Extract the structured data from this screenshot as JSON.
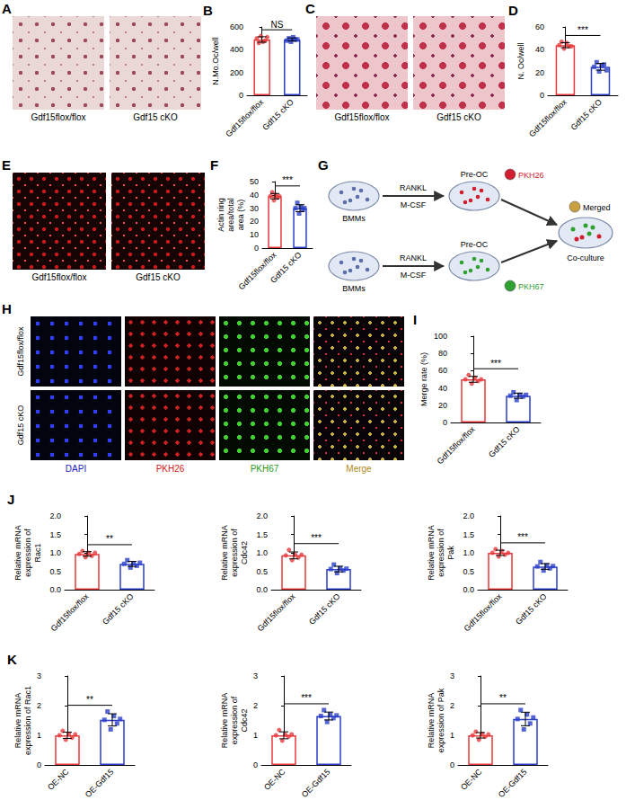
{
  "chart_data": [
    {
      "type": "bar",
      "panel": "B",
      "categories": [
        "Gdf15flox/flox",
        "Gdf15 cKO"
      ],
      "values": [
        490,
        490
      ],
      "errors": [
        24,
        14
      ],
      "points": [
        [
          500,
          460,
          520,
          470,
          480,
          510
        ],
        [
          480,
          500,
          470,
          510,
          490,
          490
        ]
      ],
      "colors": [
        "#e8393d",
        "#2b3fc8"
      ],
      "ylabel": "N.Mo.Oc/well",
      "ylim": [
        0,
        600
      ],
      "yticks": [
        0,
        200,
        400,
        600
      ],
      "annotation": "NS",
      "grid": false
    },
    {
      "type": "bar",
      "panel": "D",
      "categories": [
        "Gdf15flox/flox",
        "Gdf15 cKO"
      ],
      "values": [
        44,
        25
      ],
      "errors": [
        2.2,
        3.0
      ],
      "points": [
        [
          44,
          47,
          41,
          46,
          43,
          43
        ],
        [
          25,
          29,
          21,
          26,
          27,
          22
        ]
      ],
      "colors": [
        "#e8393d",
        "#2b3fc8"
      ],
      "ylabel": "N. Oc/well",
      "ylim": [
        0,
        60
      ],
      "yticks": [
        0,
        20,
        40,
        60
      ],
      "annotation": "***",
      "grid": false
    },
    {
      "type": "bar",
      "panel": "F",
      "categories": [
        "Gdf15flox/flox",
        "Gdf15 cKO"
      ],
      "values": [
        39,
        30
      ],
      "errors": [
        2.0,
        2.6
      ],
      "points": [
        [
          39,
          42,
          36,
          40,
          38,
          39
        ],
        [
          30,
          34,
          26,
          31,
          29,
          30
        ]
      ],
      "colors": [
        "#e8393d",
        "#2b3fc8"
      ],
      "ylabel": "Actin ring area/total area (%)",
      "ylim": [
        0,
        50
      ],
      "yticks": [
        0,
        10,
        20,
        30,
        40,
        50
      ],
      "annotation": "***",
      "grid": false
    },
    {
      "type": "bar",
      "panel": "I",
      "categories": [
        "Gdf15flox/flox",
        "Gdf15 cKO"
      ],
      "values": [
        50,
        31
      ],
      "errors": [
        3.4,
        3.0
      ],
      "points": [
        [
          50,
          55,
          45,
          52,
          48,
          50
        ],
        [
          31,
          35,
          26,
          32,
          30,
          32
        ]
      ],
      "colors": [
        "#e8393d",
        "#2b3fc8"
      ],
      "ylabel": "Merge rate (%)",
      "ylim": [
        0,
        100
      ],
      "yticks": [
        0,
        20,
        40,
        60,
        80,
        100
      ],
      "annotation": "***",
      "grid": false
    },
    {
      "type": "bar",
      "panel": "J",
      "categories": [
        "Gdf15flox/flox",
        "Gdf15 cKO"
      ],
      "values": [
        0.97,
        0.7
      ],
      "errors": [
        0.061,
        0.069
      ],
      "points": [
        [
          0.97,
          1.05,
          0.88,
          1.0,
          0.92,
          1.0
        ],
        [
          0.7,
          0.8,
          0.6,
          0.72,
          0.65,
          0.73
        ]
      ],
      "colors": [
        "#e8393d",
        "#2b3fc8"
      ],
      "ylabel": "Relative mRNA expression of Rac1",
      "ylim": [
        0,
        2
      ],
      "yticks": [
        {
          "value": 0,
          "label": "0.0"
        },
        0.5,
        {
          "value": 1,
          "label": "1.0"
        },
        1.5,
        {
          "value": 2,
          "label": "2.0"
        }
      ],
      "annotation": "**",
      "grid": false
    },
    {
      "type": "bar",
      "categories": [
        "Gdf15flox/flox",
        "Gdf15 cKO"
      ],
      "values": [
        0.93,
        0.56
      ],
      "errors": [
        0.094,
        0.076
      ],
      "points": [
        [
          0.93,
          1.08,
          0.8,
          0.95,
          0.87,
          0.95
        ],
        [
          0.56,
          0.68,
          0.45,
          0.58,
          0.52,
          0.57
        ]
      ],
      "colors": [
        "#e8393d",
        "#2b3fc8"
      ],
      "ylabel": "Relative mRNA expression of Cdc42",
      "ylim": [
        0,
        2
      ],
      "yticks": [
        {
          "value": 0,
          "label": "0.0"
        },
        0.5,
        {
          "value": 1,
          "label": "1.0"
        },
        1.5,
        {
          "value": 2,
          "label": "2.0"
        }
      ],
      "annotation": "***",
      "grid": false
    },
    {
      "type": "bar",
      "categories": [
        "Gdf15flox/flox",
        "Gdf15 cKO"
      ],
      "values": [
        1.0,
        0.63
      ],
      "errors": [
        0.071,
        0.077
      ],
      "points": [
        [
          1.0,
          1.1,
          0.9,
          1.05,
          0.95,
          1.0
        ],
        [
          0.63,
          0.75,
          0.52,
          0.66,
          0.58,
          0.64
        ]
      ],
      "colors": [
        "#e8393d",
        "#2b3fc8"
      ],
      "ylabel": "Relative mRNA expression of Pak",
      "ylim": [
        0,
        2
      ],
      "yticks": [
        {
          "value": 0,
          "label": "0.0"
        },
        0.5,
        {
          "value": 1,
          "label": "1.0"
        },
        1.5,
        {
          "value": 2,
          "label": "2.0"
        }
      ],
      "annotation": "***",
      "grid": false
    },
    {
      "type": "bar",
      "panel": "K",
      "categories": [
        "OE-NC",
        "OE-Gdf15"
      ],
      "values": [
        1.0,
        1.52
      ],
      "errors": [
        0.105,
        0.206
      ],
      "points": [
        [
          1.0,
          1.15,
          0.85,
          1.05,
          0.92,
          1.03
        ],
        [
          1.52,
          1.8,
          1.2,
          1.65,
          1.4,
          1.55
        ]
      ],
      "colors": [
        "#e8393d",
        "#2b3fc8"
      ],
      "ylabel": "Relative mRNA expression of Rac1",
      "ylim": [
        0,
        3
      ],
      "yticks": [
        0,
        1,
        2,
        3
      ],
      "annotation": "**",
      "grid": false
    },
    {
      "type": "bar",
      "categories": [
        "OE-NC",
        "OE-Gdf15"
      ],
      "values": [
        1.0,
        1.65
      ],
      "errors": [
        0.117,
        0.133
      ],
      "points": [
        [
          1.0,
          1.18,
          0.82,
          1.02,
          0.95,
          1.03
        ],
        [
          1.65,
          1.85,
          1.45,
          1.7,
          1.58,
          1.67
        ]
      ],
      "colors": [
        "#e8393d",
        "#2b3fc8"
      ],
      "ylabel": "Relative mRNA expression of Cdc42",
      "ylim": [
        0,
        3
      ],
      "yticks": [
        0,
        1,
        2,
        3
      ],
      "annotation": "***",
      "grid": false
    },
    {
      "type": "bar",
      "categories": [
        "OE-NC",
        "OE-Gdf15"
      ],
      "values": [
        1.0,
        1.55
      ],
      "errors": [
        0.093,
        0.228
      ],
      "points": [
        [
          1.0,
          1.12,
          0.85,
          1.05,
          0.95,
          1.03
        ],
        [
          1.55,
          1.85,
          1.2,
          1.7,
          1.4,
          1.6
        ]
      ],
      "colors": [
        "#e8393d",
        "#2b3fc8"
      ],
      "ylabel": "Relative mRNA expression of Pak",
      "ylim": [
        0,
        3
      ],
      "yticks": [
        0,
        1,
        2,
        3
      ],
      "annotation": "**",
      "grid": false
    }
  ],
  "images": [
    {
      "panel": "A",
      "labels": [
        "Gdf15flox/flox",
        "Gdf15 cKO"
      ]
    },
    {
      "panel": "C",
      "labels": [
        "Gdf15flox/flox",
        "Gdf15 cKO"
      ]
    },
    {
      "panel": "E",
      "labels": [
        "Gdf15flox/flox",
        "Gdf15 cKO"
      ]
    },
    {
      "panel": "H",
      "rows": [
        "Gdf15flox/flox",
        "Gdf15 cKO"
      ],
      "columns": [
        "DAPI",
        "PKH26",
        "PKH67",
        "Merge"
      ]
    }
  ],
  "schematic": {
    "panel": "G",
    "rows": [
      {
        "start": "BMMs",
        "treatments": [
          "RANKL",
          "M-CSF"
        ],
        "stage": "Pre-OC",
        "dye": "PKH26"
      },
      {
        "start": "BMMs",
        "treatments": [
          "RANKL",
          "M-CSF"
        ],
        "stage": "Pre-OC",
        "dye": "PKH67"
      }
    ],
    "merge": "Merged",
    "end": "Co-culture"
  }
}
